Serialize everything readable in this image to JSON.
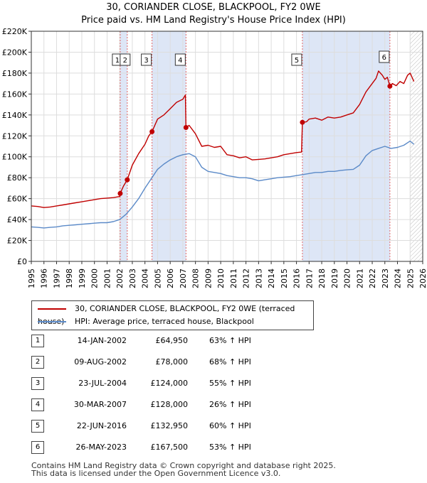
{
  "title": {
    "line1": "30, CORIANDER CLOSE, BLACKPOOL, FY2 0WE",
    "line2": "Price paid vs. HM Land Registry's House Price Index (HPI)"
  },
  "colors": {
    "property": "#c00000",
    "hpi": "#5b8ac8",
    "shade": "#dde6f6",
    "grid": "#dddddd",
    "vline": "#e06666"
  },
  "legend": {
    "property_label": "30, CORIANDER CLOSE, BLACKPOOL, FY2 0WE (terraced house)",
    "hpi_label": "HPI: Average price, terraced house, Blackpool"
  },
  "sales": [
    {
      "num": "1",
      "date": "14-JAN-2002",
      "price": "£64,950",
      "hpi": "63% ↑ HPI"
    },
    {
      "num": "2",
      "date": "09-AUG-2002",
      "price": "£78,000",
      "hpi": "68% ↑ HPI"
    },
    {
      "num": "3",
      "date": "23-JUL-2004",
      "price": "£124,000",
      "hpi": "55% ↑ HPI"
    },
    {
      "num": "4",
      "date": "30-MAR-2007",
      "price": "£128,000",
      "hpi": "26% ↑ HPI"
    },
    {
      "num": "5",
      "date": "22-JUN-2016",
      "price": "£132,950",
      "hpi": "60% ↑ HPI"
    },
    {
      "num": "6",
      "date": "26-MAY-2023",
      "price": "£167,500",
      "hpi": "53% ↑ HPI"
    }
  ],
  "footer": {
    "line1": "Contains HM Land Registry data © Crown copyright and database right 2025.",
    "line2": "This data is licensed under the Open Government Licence v3.0."
  },
  "chart_data": {
    "type": "line",
    "title": "Price paid vs. HM Land Registry's House Price Index (HPI)",
    "xlim": [
      1995,
      2026
    ],
    "ylim": [
      0,
      220000
    ],
    "x_ticks": [
      1995,
      1996,
      1997,
      1998,
      1999,
      2000,
      2001,
      2002,
      2003,
      2004,
      2005,
      2006,
      2007,
      2008,
      2009,
      2010,
      2011,
      2012,
      2013,
      2014,
      2015,
      2016,
      2017,
      2018,
      2019,
      2020,
      2021,
      2022,
      2023,
      2024,
      2025,
      2026
    ],
    "y_ticks": [
      0,
      20000,
      40000,
      60000,
      80000,
      100000,
      120000,
      140000,
      160000,
      180000,
      200000,
      220000
    ],
    "y_tick_labels": [
      "£0",
      "£20K",
      "£40K",
      "£60K",
      "£80K",
      "£100K",
      "£120K",
      "£140K",
      "£160K",
      "£180K",
      "£200K",
      "£220K"
    ],
    "shaded_ranges": [
      [
        2002.04,
        2002.6
      ],
      [
        2004.56,
        2007.25
      ],
      [
        2016.47,
        2023.4
      ]
    ],
    "projection_hatch_from": 2025.0,
    "sale_markers": [
      {
        "label": "1",
        "x": 2002.04,
        "y": 64950
      },
      {
        "label": "2",
        "x": 2002.6,
        "y": 78000
      },
      {
        "label": "3",
        "x": 2004.56,
        "y": 124000
      },
      {
        "label": "4",
        "x": 2007.25,
        "y": 128000
      },
      {
        "label": "5",
        "x": 2016.47,
        "y": 132950
      },
      {
        "label": "6",
        "x": 2023.4,
        "y": 167500
      }
    ],
    "series": [
      {
        "name": "30, CORIANDER CLOSE, BLACKPOOL, FY2 0WE (terraced house)",
        "color": "#c00000",
        "x": [
          1995.0,
          1995.5,
          1996.0,
          1996.5,
          1997.0,
          1997.5,
          1998.0,
          1998.5,
          1999.0,
          1999.5,
          2000.0,
          2000.5,
          2001.0,
          2001.5,
          2002.0,
          2002.04,
          2002.3,
          2002.6,
          2003.0,
          2003.5,
          2004.0,
          2004.3,
          2004.56,
          2005.0,
          2005.5,
          2006.0,
          2006.5,
          2007.0,
          2007.2,
          2007.25,
          2007.5,
          2008.0,
          2008.5,
          2009.0,
          2009.5,
          2010.0,
          2010.5,
          2011.0,
          2011.5,
          2012.0,
          2012.5,
          2013.0,
          2013.5,
          2014.0,
          2014.5,
          2015.0,
          2015.5,
          2016.0,
          2016.4,
          2016.47,
          2016.8,
          2017.0,
          2017.5,
          2018.0,
          2018.5,
          2019.0,
          2019.5,
          2020.0,
          2020.5,
          2021.0,
          2021.5,
          2022.0,
          2022.3,
          2022.5,
          2022.8,
          2023.0,
          2023.2,
          2023.4,
          2023.6,
          2023.9,
          2024.2,
          2024.5,
          2024.8,
          2025.0,
          2025.3
        ],
        "y": [
          53000,
          52500,
          51500,
          52000,
          53000,
          54000,
          55000,
          56000,
          57000,
          58000,
          59000,
          60000,
          60500,
          61000,
          62000,
          64950,
          72000,
          78000,
          92000,
          103000,
          112000,
          120000,
          124000,
          136000,
          140000,
          146000,
          152000,
          155000,
          159000,
          128000,
          130000,
          122000,
          110000,
          111000,
          109000,
          110000,
          102000,
          101000,
          99000,
          100000,
          97000,
          97500,
          98000,
          99000,
          100000,
          102000,
          103000,
          104000,
          104500,
          132950,
          133500,
          136000,
          137000,
          135000,
          138000,
          137000,
          138000,
          140000,
          142000,
          150000,
          162000,
          170000,
          175000,
          182000,
          178000,
          174000,
          176000,
          167500,
          170000,
          168000,
          172000,
          170000,
          178000,
          180000,
          172000
        ]
      },
      {
        "name": "HPI: Average price, terraced house, Blackpool",
        "color": "#5b8ac8",
        "x": [
          1995.0,
          1995.5,
          1996.0,
          1996.5,
          1997.0,
          1997.5,
          1998.0,
          1998.5,
          1999.0,
          1999.5,
          2000.0,
          2000.5,
          2001.0,
          2001.5,
          2002.0,
          2002.5,
          2003.0,
          2003.5,
          2004.0,
          2004.5,
          2005.0,
          2005.5,
          2006.0,
          2006.5,
          2007.0,
          2007.5,
          2008.0,
          2008.5,
          2009.0,
          2009.5,
          2010.0,
          2010.5,
          2011.0,
          2011.5,
          2012.0,
          2012.5,
          2013.0,
          2013.5,
          2014.0,
          2014.5,
          2015.0,
          2015.5,
          2016.0,
          2016.5,
          2017.0,
          2017.5,
          2018.0,
          2018.5,
          2019.0,
          2019.5,
          2020.0,
          2020.5,
          2021.0,
          2021.5,
          2022.0,
          2022.5,
          2023.0,
          2023.5,
          2024.0,
          2024.5,
          2025.0,
          2025.3
        ],
        "y": [
          33000,
          32500,
          32000,
          32500,
          33000,
          34000,
          34500,
          35000,
          35500,
          36000,
          36500,
          37000,
          37000,
          38000,
          40000,
          45000,
          52000,
          60000,
          70000,
          79000,
          88000,
          93000,
          97000,
          100000,
          102000,
          103000,
          100000,
          90000,
          86000,
          85000,
          84000,
          82000,
          81000,
          80000,
          80000,
          79000,
          77000,
          78000,
          79000,
          80000,
          80500,
          81000,
          82000,
          83000,
          84000,
          85000,
          85000,
          86000,
          86000,
          87000,
          87500,
          88000,
          92000,
          101000,
          106000,
          108000,
          110000,
          108000,
          109000,
          111000,
          115000,
          112000
        ]
      }
    ]
  }
}
